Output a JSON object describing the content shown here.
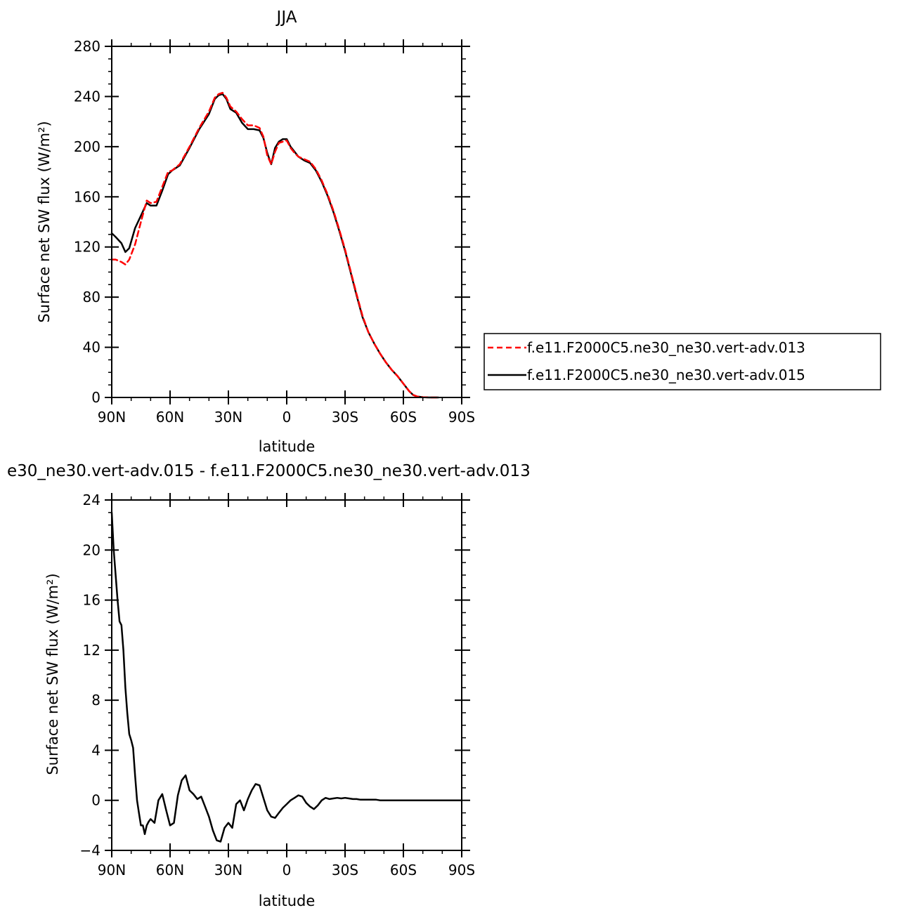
{
  "chart_data": [
    {
      "type": "line",
      "title": "JJA",
      "xlabel": "latitude",
      "ylabel": "Surface net SW flux (W/m²)",
      "xlim": [
        -90,
        90
      ],
      "ylim": [
        0,
        280
      ],
      "x_ticks": [
        {
          "value": -90,
          "label": "90N"
        },
        {
          "value": -60,
          "label": "60N"
        },
        {
          "value": -30,
          "label": "30N"
        },
        {
          "value": 0,
          "label": "0"
        },
        {
          "value": 30,
          "label": "30S"
        },
        {
          "value": 60,
          "label": "60S"
        },
        {
          "value": 90,
          "label": "90S"
        }
      ],
      "y_ticks": [
        0,
        40,
        80,
        120,
        160,
        200,
        240,
        280
      ],
      "legend": "right",
      "series": [
        {
          "name": "f.e11.F2000C5.ne30_ne30.vert-adv.013",
          "color": "#ff0000",
          "style": "dashed",
          "x": [
            -90,
            -88,
            -85,
            -83,
            -81,
            -78,
            -75,
            -72,
            -70,
            -67,
            -64,
            -61,
            -59,
            -55,
            -50,
            -45,
            -40,
            -37,
            -35,
            -33,
            -31,
            -29,
            -26,
            -23,
            -20,
            -17,
            -14,
            -12,
            -10,
            -8,
            -6,
            -4,
            -2,
            0,
            2,
            4,
            6,
            9,
            12,
            15,
            18,
            21,
            24,
            27,
            30,
            33,
            36,
            39,
            42,
            45,
            48,
            51,
            54,
            57,
            60,
            63,
            65,
            67,
            70,
            73,
            76,
            78
          ],
          "y": [
            110,
            110,
            108,
            106,
            110,
            122,
            140,
            157,
            155,
            156,
            168,
            180,
            181,
            186,
            200,
            215,
            228,
            239,
            242,
            243,
            239,
            232,
            228,
            222,
            217,
            217,
            215,
            208,
            193,
            186,
            196,
            203,
            204,
            205,
            199,
            195,
            192,
            190,
            188,
            182,
            173,
            162,
            149,
            134,
            118,
            100,
            82,
            65,
            52,
            43,
            35,
            28,
            22,
            17,
            11,
            5,
            2,
            0.8,
            0.2,
            0,
            0,
            0
          ]
        },
        {
          "name": "f.e11.F2000C5.ne30_ne30.vert-adv.015",
          "color": "#000000",
          "style": "solid",
          "x": [
            -90,
            -88,
            -85,
            -83,
            -81,
            -78,
            -75,
            -72,
            -70,
            -67,
            -64,
            -61,
            -59,
            -55,
            -50,
            -45,
            -40,
            -37,
            -35,
            -33,
            -31,
            -29,
            -26,
            -23,
            -20,
            -17,
            -14,
            -12,
            -10,
            -8,
            -6,
            -4,
            -2,
            0,
            2,
            4,
            6,
            9,
            12,
            15,
            18,
            21,
            24,
            27,
            30,
            33,
            36,
            39,
            42,
            45,
            48,
            51,
            54,
            57,
            60,
            63,
            65,
            67,
            70,
            73,
            76,
            78
          ],
          "y": [
            131,
            128,
            123,
            116,
            119,
            135,
            145,
            155,
            153,
            153,
            165,
            178,
            181,
            185,
            199,
            214,
            226,
            238,
            241,
            242,
            238,
            230,
            227,
            219,
            214,
            214,
            213,
            207,
            195,
            186,
            199,
            204,
            206,
            206,
            200,
            196,
            192,
            189,
            187,
            181,
            172,
            161,
            148,
            133,
            117,
            99,
            81,
            64,
            52,
            43,
            35,
            28,
            22,
            17,
            11,
            5,
            2,
            0.8,
            0.2,
            0,
            0,
            0
          ]
        }
      ]
    },
    {
      "type": "line",
      "title": "e30_ne30.vert-adv.015 - f.e11.F2000C5.ne30_ne30.vert-adv.013",
      "xlabel": "latitude",
      "ylabel": "Surface net SW flux (W/m²)",
      "xlim": [
        -90,
        90
      ],
      "ylim": [
        -4,
        24
      ],
      "x_ticks": [
        {
          "value": -90,
          "label": "90N"
        },
        {
          "value": -60,
          "label": "60N"
        },
        {
          "value": -30,
          "label": "30N"
        },
        {
          "value": 0,
          "label": "0"
        },
        {
          "value": 30,
          "label": "30S"
        },
        {
          "value": 60,
          "label": "60S"
        },
        {
          "value": 90,
          "label": "90S"
        }
      ],
      "y_ticks": [
        -4,
        0,
        4,
        8,
        12,
        16,
        20,
        24
      ],
      "series": [
        {
          "color": "#000000",
          "style": "solid",
          "x": [
            -90,
            -89,
            -87,
            -86,
            -85,
            -84,
            -83,
            -82,
            -81,
            -80,
            -79,
            -78,
            -77,
            -76,
            -75,
            -74,
            -73,
            -72,
            -71,
            -70,
            -68,
            -66,
            -64,
            -62,
            -60,
            -58,
            -56,
            -54,
            -52,
            -50,
            -48,
            -46,
            -44,
            -42,
            -40,
            -38,
            -36,
            -34,
            -32,
            -30,
            -28,
            -26,
            -24,
            -22,
            -20,
            -18,
            -16,
            -14,
            -12,
            -10,
            -8,
            -6,
            -4,
            -2,
            0,
            2,
            4,
            6,
            8,
            10,
            12,
            14,
            16,
            18,
            20,
            22,
            24,
            26,
            28,
            30,
            32,
            34,
            36,
            38,
            40,
            42,
            44,
            46,
            48,
            50,
            55,
            60,
            65,
            70,
            75,
            80,
            85,
            90
          ],
          "y": [
            23,
            20,
            16,
            14.3,
            14,
            12,
            9,
            7,
            5.3,
            4.8,
            4.2,
            2,
            0,
            -1,
            -2,
            -2,
            -2.7,
            -2,
            -1.7,
            -1.5,
            -1.8,
            0,
            0.5,
            -0.8,
            -2,
            -1.8,
            0.4,
            1.6,
            2,
            0.8,
            0.5,
            0.1,
            0.3,
            -0.5,
            -1.3,
            -2.4,
            -3.2,
            -3.3,
            -2.2,
            -1.8,
            -2.2,
            -0.3,
            0,
            -0.8,
            0.1,
            0.8,
            1.3,
            1.2,
            0.2,
            -0.8,
            -1.3,
            -1.4,
            -1,
            -0.6,
            -0.3,
            0,
            0.2,
            0.4,
            0.3,
            -0.2,
            -0.5,
            -0.7,
            -0.4,
            0,
            0.2,
            0.1,
            0.15,
            0.2,
            0.15,
            0.2,
            0.15,
            0.1,
            0.1,
            0.05,
            0.05,
            0.05,
            0.05,
            0.05,
            0,
            0,
            0,
            0,
            0,
            0,
            0,
            0,
            0,
            0
          ]
        }
      ]
    }
  ]
}
